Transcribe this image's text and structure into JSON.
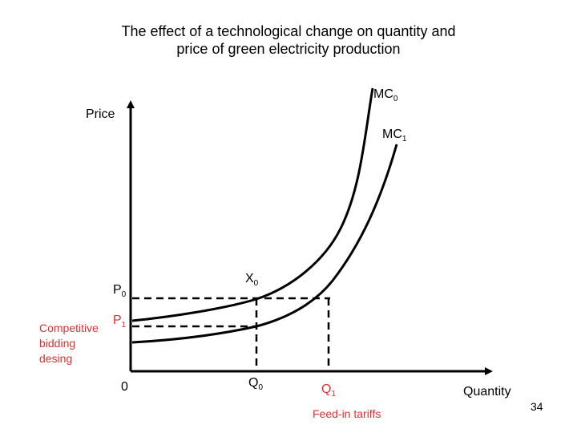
{
  "title": {
    "line1": "The effect of a technological change on quantity and",
    "line2": "price of green electricity production"
  },
  "axes": {
    "y_label": "Price",
    "x_label": "Quantity",
    "origin": "0"
  },
  "curves": {
    "mc0": {
      "base": "MC",
      "sub": "0"
    },
    "mc1": {
      "base": "MC",
      "sub": "1"
    }
  },
  "points": {
    "x0": {
      "base": "X",
      "sub": "0"
    },
    "p0": {
      "base": "P",
      "sub": "0"
    },
    "p1": {
      "base": "P",
      "sub": "1"
    },
    "q0": {
      "base": "Q",
      "sub": "0"
    },
    "q1": {
      "base": "Q",
      "sub": "1"
    }
  },
  "annotations": {
    "competitive_line1": "Competitive",
    "competitive_line2": "bidding",
    "competitive_line3": "desing",
    "feed_in": "Feed-in tariffs"
  },
  "page_number": "34",
  "colors": {
    "axis": "#000000",
    "curve": "#000000",
    "accent_red": "#e03030"
  }
}
